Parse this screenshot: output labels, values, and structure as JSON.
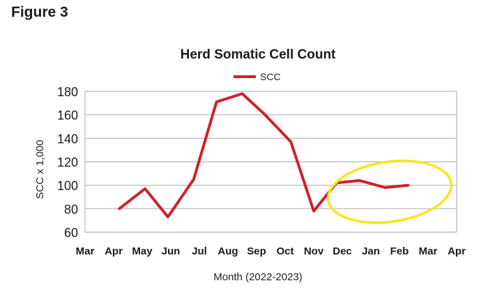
{
  "figure_label": "Figure 3",
  "chart_data": {
    "type": "line",
    "title": "Herd Somatic Cell Count",
    "xlabel": "Month (2022-2023)",
    "ylabel": "SCC x 1,000",
    "ylim": [
      60,
      180
    ],
    "yticks": [
      60,
      80,
      100,
      120,
      140,
      160,
      180
    ],
    "categories": [
      "Mar",
      "Apr",
      "May",
      "Jun",
      "Jul",
      "Aug",
      "Sep",
      "Oct",
      "Nov",
      "Dec",
      "Jan",
      "Feb",
      "Mar",
      "Apr"
    ],
    "x": [
      1.2,
      2.1,
      2.9,
      3.8,
      4.6,
      5.5,
      6.3,
      7.2,
      8.0,
      8.8,
      9.6,
      10.5,
      11.3
    ],
    "series": [
      {
        "name": "SCC",
        "values": [
          80,
          97,
          73,
          105,
          171,
          178,
          160,
          137,
          78,
          102,
          104,
          98,
          100
        ]
      }
    ],
    "grid": true,
    "legend": "top-center",
    "line_color": "#d0202a",
    "highlight_color": "#f2e81b"
  }
}
